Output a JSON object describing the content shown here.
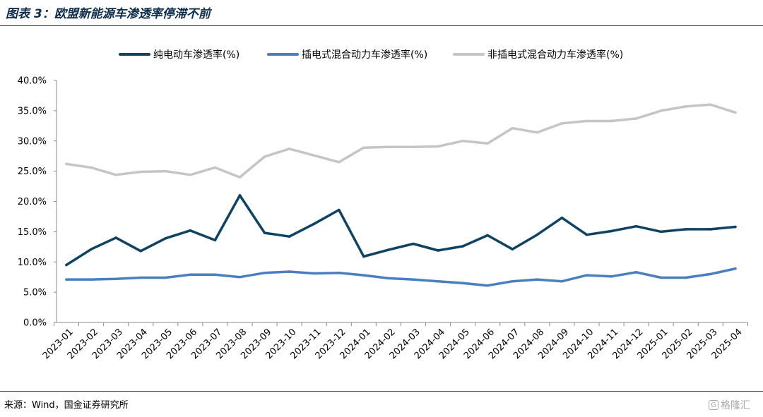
{
  "header": {
    "title": "图表 3：欧盟新能源车渗透率停滞不前"
  },
  "footer": {
    "source": "来源：Wind，国金证券研究所",
    "watermark": "格隆汇"
  },
  "colors": {
    "bev": "#0e4363",
    "phev": "#4a7fbf",
    "nonplug_hev": "#c5c5c5",
    "rule": "#1d3e5e"
  },
  "chart_data": {
    "type": "line",
    "title": "",
    "xlabel": "",
    "ylabel": "",
    "ylim": [
      0,
      40
    ],
    "yticks": [
      "0.0%",
      "5.0%",
      "10.0%",
      "15.0%",
      "20.0%",
      "25.0%",
      "30.0%",
      "35.0%",
      "40.0%"
    ],
    "grid": false,
    "legend": "top",
    "x": [
      "2023-01",
      "2023-02",
      "2023-03",
      "2023-04",
      "2023-05",
      "2023-06",
      "2023-07",
      "2023-08",
      "2023-09",
      "2023-10",
      "2023-11",
      "2023-12",
      "2024-01",
      "2024-02",
      "2024-03",
      "2024-04",
      "2024-05",
      "2024-06",
      "2024-07",
      "2024-08",
      "2024-09",
      "2024-10",
      "2024-11",
      "2024-12",
      "2025-01",
      "2025-02",
      "2025-03",
      "2025-04"
    ],
    "series": [
      {
        "name": "纯电动车渗透率(%)",
        "color": "#0e4363",
        "values": [
          9.5,
          12.1,
          14.0,
          11.8,
          13.9,
          15.2,
          13.6,
          21.0,
          14.8,
          14.2,
          16.3,
          18.6,
          10.9,
          12.0,
          13.0,
          11.9,
          12.6,
          14.4,
          12.1,
          14.5,
          17.3,
          14.5,
          15.1,
          15.9,
          15.0,
          15.4,
          15.4,
          15.8
        ]
      },
      {
        "name": "插电式混合动力车渗透率(%)",
        "color": "#4a7fbf",
        "values": [
          7.1,
          7.1,
          7.2,
          7.4,
          7.4,
          7.9,
          7.9,
          7.5,
          8.2,
          8.4,
          8.1,
          8.2,
          7.8,
          7.3,
          7.1,
          6.8,
          6.5,
          6.1,
          6.8,
          7.1,
          6.8,
          7.8,
          7.6,
          8.3,
          7.4,
          7.4,
          8.0,
          8.9
        ]
      },
      {
        "name": "非插电式混合动力车渗透率(%)",
        "color": "#c5c5c5",
        "values": [
          26.2,
          25.6,
          24.4,
          24.9,
          25.0,
          24.4,
          25.6,
          24.0,
          27.4,
          28.7,
          27.6,
          26.5,
          28.9,
          29.0,
          29.0,
          29.1,
          30.0,
          29.6,
          32.1,
          31.4,
          32.9,
          33.3,
          33.3,
          33.7,
          35.0,
          35.7,
          36.0,
          34.7
        ]
      }
    ]
  }
}
